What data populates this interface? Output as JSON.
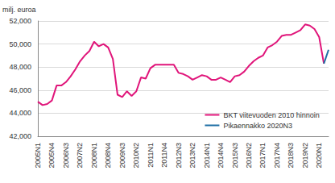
{
  "chart_data": {
    "type": "line",
    "y_label": "milj. euroa",
    "categories": [
      "2005N1",
      null,
      null,
      "2005N4",
      null,
      null,
      "2006N3",
      null,
      null,
      "2007N2",
      null,
      null,
      "2008N1",
      null,
      null,
      "2008N4",
      null,
      null,
      "2009N3",
      null,
      null,
      "2010N2",
      null,
      null,
      "2011N1",
      null,
      null,
      "2011N4",
      null,
      null,
      "2012N3",
      null,
      null,
      "2013N2",
      null,
      null,
      "2014N1",
      null,
      null,
      "2014N4",
      null,
      null,
      "2015N3",
      null,
      null,
      "2016N2",
      null,
      null,
      "2017N1",
      null,
      null,
      "2017N4",
      null,
      null,
      "2018N3",
      null,
      null,
      "2019N2",
      null,
      null,
      "2020N1",
      null,
      null
    ],
    "series": [
      {
        "name": "BKT viitevuoden 2010 hinnoin",
        "color": "#e0157a",
        "values": [
          45000,
          44700,
          44800,
          45100,
          46400,
          46400,
          46700,
          47200,
          47800,
          48500,
          49000,
          49400,
          50200,
          49800,
          50000,
          49700,
          48700,
          45600,
          45400,
          45900,
          45500,
          45900,
          47100,
          47000,
          47900,
          48200,
          48200,
          48200,
          48200,
          48200,
          47500,
          47400,
          47200,
          46900,
          47100,
          47300,
          47200,
          46900,
          46900,
          47100,
          46900,
          46700,
          47200,
          47300,
          47600,
          48100,
          48500,
          48800,
          49000,
          49700,
          49900,
          50200,
          50700,
          50800,
          50800,
          51000,
          51200,
          51700,
          51600,
          51300,
          50600,
          48300,
          null
        ]
      },
      {
        "name": "Pikaennakko 2020N3",
        "color": "#1f6fa5",
        "values": [
          null,
          null,
          null,
          null,
          null,
          null,
          null,
          null,
          null,
          null,
          null,
          null,
          null,
          null,
          null,
          null,
          null,
          null,
          null,
          null,
          null,
          null,
          null,
          null,
          null,
          null,
          null,
          null,
          null,
          null,
          null,
          null,
          null,
          null,
          null,
          null,
          null,
          null,
          null,
          null,
          null,
          null,
          null,
          null,
          null,
          null,
          null,
          null,
          null,
          null,
          null,
          null,
          null,
          null,
          null,
          null,
          null,
          null,
          null,
          null,
          null,
          48300,
          49500
        ]
      }
    ],
    "ylim": [
      42000,
      52000
    ],
    "yticks": [
      42000,
      44000,
      46000,
      48000,
      50000,
      52000
    ],
    "grid": true,
    "legend": "bottom-right"
  }
}
